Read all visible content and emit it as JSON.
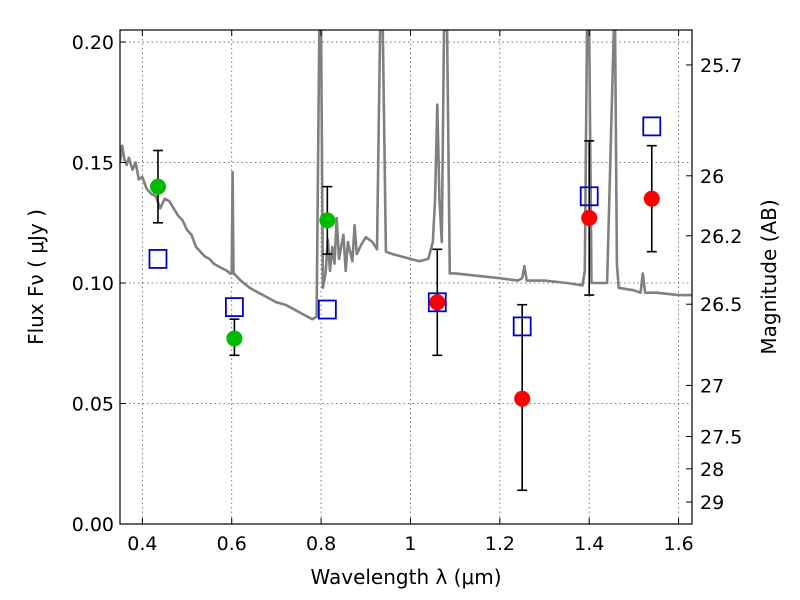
{
  "chart_data": {
    "type": "scatter",
    "xlabel": "Wavelength  λ (μm)",
    "ylabel": "Flux  Fν  ( μJy )",
    "ylabel_right": "Magnitude (AB)",
    "xlim": [
      0.35,
      1.63
    ],
    "ylim": [
      0.0,
      0.205
    ],
    "grid": true,
    "x_ticks": [
      0.4,
      0.6,
      0.8,
      1.0,
      1.2,
      1.4,
      1.6
    ],
    "x_tick_labels": [
      "0.4",
      "0.6",
      "0.8",
      "1",
      "1.2",
      "1.4",
      "1.6"
    ],
    "y_ticks": [
      0.0,
      0.05,
      0.1,
      0.15,
      0.2
    ],
    "y_tick_labels": [
      "0.00",
      "0.05",
      "0.10",
      "0.15",
      "0.20"
    ],
    "right_ticks": [
      {
        "flux": 0.1905,
        "label": "25.7"
      },
      {
        "flux": 0.1445,
        "label": "26"
      },
      {
        "flux": 0.1196,
        "label": "26.2"
      },
      {
        "flux": 0.0912,
        "label": "26.5"
      },
      {
        "flux": 0.0575,
        "label": "27"
      },
      {
        "flux": 0.0363,
        "label": "27.5"
      },
      {
        "flux": 0.0229,
        "label": "28"
      },
      {
        "flux": 0.0091,
        "label": "29"
      }
    ],
    "colors": {
      "green": "#00bb00",
      "red": "#ff0000",
      "model": "#0000cc",
      "spectrum": "#808080"
    },
    "series": [
      {
        "marker": "green-circle",
        "points": [
          {
            "x": 0.435,
            "y": 0.14,
            "yerr_low": 0.125,
            "yerr_high": 0.155
          },
          {
            "x": 0.606,
            "y": 0.077,
            "yerr_low": 0.07,
            "yerr_high": 0.085
          },
          {
            "x": 0.814,
            "y": 0.126,
            "yerr_low": 0.112,
            "yerr_high": 0.14
          }
        ]
      },
      {
        "marker": "red-circle",
        "points": [
          {
            "x": 1.06,
            "y": 0.092,
            "yerr_low": 0.07,
            "yerr_high": 0.114
          },
          {
            "x": 1.25,
            "y": 0.052,
            "yerr_low": 0.014,
            "yerr_high": 0.091
          },
          {
            "x": 1.4,
            "y": 0.127,
            "yerr_low": 0.095,
            "yerr_high": 0.159
          },
          {
            "x": 1.54,
            "y": 0.135,
            "yerr_low": 0.113,
            "yerr_high": 0.157
          }
        ]
      },
      {
        "marker": "blue-open-square",
        "points": [
          {
            "x": 0.435,
            "y": 0.11
          },
          {
            "x": 0.606,
            "y": 0.09
          },
          {
            "x": 0.814,
            "y": 0.089
          },
          {
            "x": 1.06,
            "y": 0.092
          },
          {
            "x": 1.25,
            "y": 0.082
          },
          {
            "x": 1.4,
            "y": 0.136
          },
          {
            "x": 1.54,
            "y": 0.165
          }
        ]
      },
      {
        "marker": "gray-line",
        "points": [
          [
            0.35,
            0.15
          ],
          [
            0.355,
            0.157
          ],
          [
            0.36,
            0.151
          ],
          [
            0.365,
            0.149
          ],
          [
            0.37,
            0.152
          ],
          [
            0.378,
            0.147
          ],
          [
            0.385,
            0.15
          ],
          [
            0.392,
            0.143
          ],
          [
            0.4,
            0.144
          ],
          [
            0.41,
            0.139
          ],
          [
            0.42,
            0.137
          ],
          [
            0.43,
            0.136
          ],
          [
            0.44,
            0.131
          ],
          [
            0.45,
            0.135
          ],
          [
            0.46,
            0.134
          ],
          [
            0.47,
            0.131
          ],
          [
            0.48,
            0.128
          ],
          [
            0.49,
            0.126
          ],
          [
            0.5,
            0.122
          ],
          [
            0.51,
            0.12
          ],
          [
            0.52,
            0.115
          ],
          [
            0.53,
            0.113
          ],
          [
            0.54,
            0.111
          ],
          [
            0.55,
            0.11
          ],
          [
            0.56,
            0.108
          ],
          [
            0.57,
            0.107
          ],
          [
            0.58,
            0.106
          ],
          [
            0.59,
            0.105
          ],
          [
            0.596,
            0.104
          ],
          [
            0.6,
            0.104
          ],
          [
            0.602,
            0.146
          ],
          [
            0.604,
            0.104
          ],
          [
            0.61,
            0.103
          ],
          [
            0.62,
            0.101
          ],
          [
            0.64,
            0.098
          ],
          [
            0.66,
            0.096
          ],
          [
            0.68,
            0.094
          ],
          [
            0.7,
            0.092
          ],
          [
            0.72,
            0.091
          ],
          [
            0.74,
            0.089
          ],
          [
            0.76,
            0.087
          ],
          [
            0.78,
            0.085
          ],
          [
            0.79,
            0.086
          ],
          [
            0.796,
            0.205
          ],
          [
            0.8,
            0.205
          ],
          [
            0.804,
            0.098
          ],
          [
            0.81,
            0.104
          ],
          [
            0.815,
            0.118
          ],
          [
            0.82,
            0.105
          ],
          [
            0.825,
            0.115
          ],
          [
            0.83,
            0.108
          ],
          [
            0.835,
            0.127
          ],
          [
            0.84,
            0.11
          ],
          [
            0.85,
            0.12
          ],
          [
            0.855,
            0.105
          ],
          [
            0.86,
            0.117
          ],
          [
            0.87,
            0.109
          ],
          [
            0.875,
            0.124
          ],
          [
            0.88,
            0.112
          ],
          [
            0.89,
            0.116
          ],
          [
            0.9,
            0.119
          ],
          [
            0.915,
            0.117
          ],
          [
            0.925,
            0.114
          ],
          [
            0.932,
            0.205
          ],
          [
            0.938,
            0.205
          ],
          [
            0.945,
            0.113
          ],
          [
            0.96,
            0.112
          ],
          [
            0.98,
            0.111
          ],
          [
            1.0,
            0.11
          ],
          [
            1.02,
            0.109
          ],
          [
            1.04,
            0.11
          ],
          [
            1.05,
            0.117
          ],
          [
            1.055,
            0.134
          ],
          [
            1.06,
            0.174
          ],
          [
            1.065,
            0.134
          ],
          [
            1.07,
            0.117
          ],
          [
            1.075,
            0.205
          ],
          [
            1.082,
            0.205
          ],
          [
            1.088,
            0.104
          ],
          [
            1.1,
            0.104
          ],
          [
            1.15,
            0.103
          ],
          [
            1.2,
            0.102
          ],
          [
            1.24,
            0.101
          ],
          [
            1.25,
            0.102
          ],
          [
            1.255,
            0.107
          ],
          [
            1.26,
            0.101
          ],
          [
            1.3,
            0.101
          ],
          [
            1.35,
            0.1
          ],
          [
            1.385,
            0.099
          ],
          [
            1.39,
            0.105
          ],
          [
            1.395,
            0.205
          ],
          [
            1.4,
            0.205
          ],
          [
            1.405,
            0.1
          ],
          [
            1.42,
            0.1
          ],
          [
            1.44,
            0.1
          ],
          [
            1.455,
            0.205
          ],
          [
            1.458,
            0.205
          ],
          [
            1.462,
            0.108
          ],
          [
            1.466,
            0.098
          ],
          [
            1.5,
            0.097
          ],
          [
            1.515,
            0.096
          ],
          [
            1.52,
            0.104
          ],
          [
            1.525,
            0.096
          ],
          [
            1.55,
            0.096
          ],
          [
            1.6,
            0.095
          ],
          [
            1.63,
            0.095
          ]
        ]
      }
    ]
  }
}
